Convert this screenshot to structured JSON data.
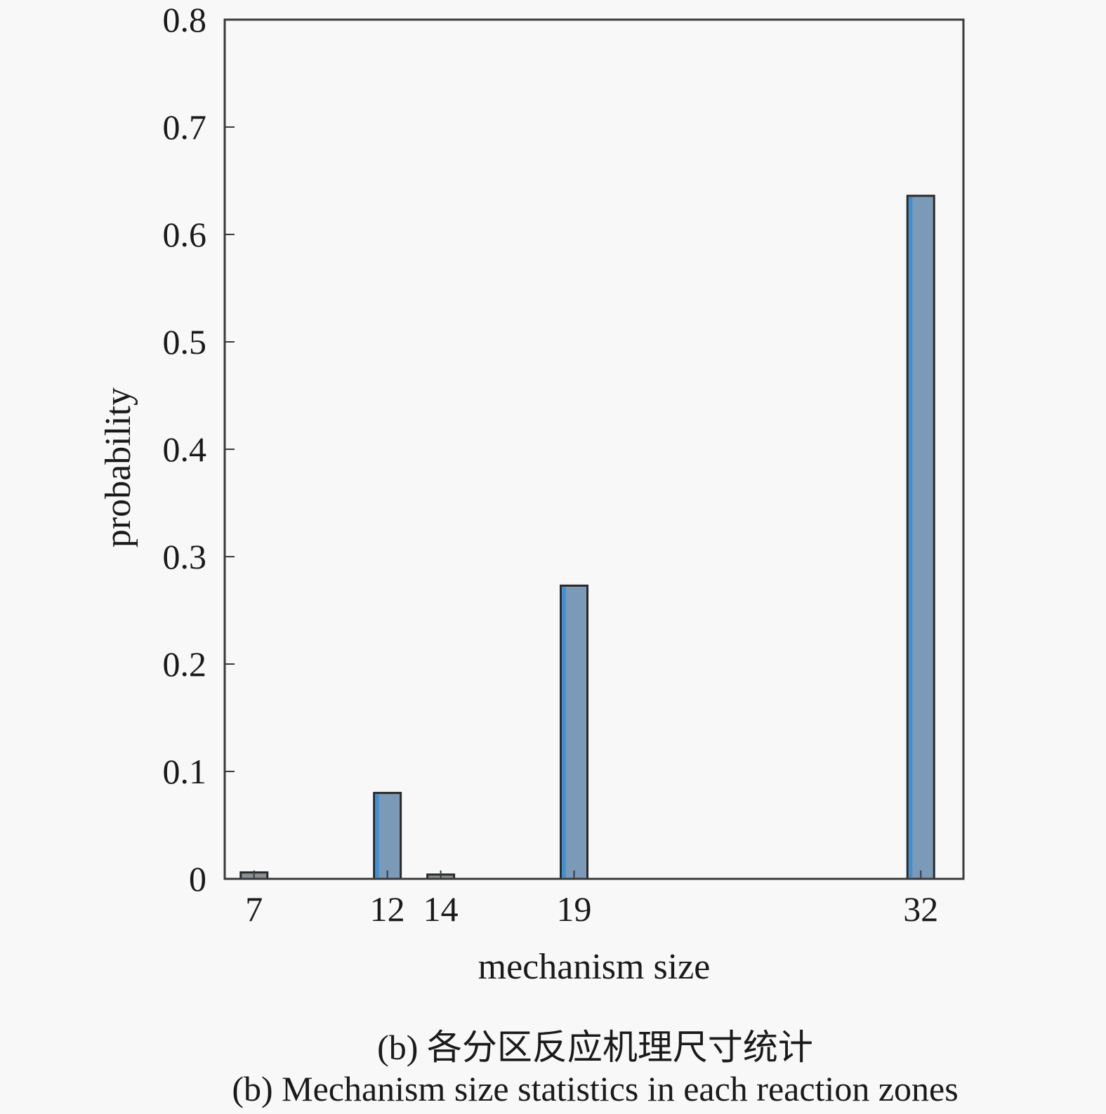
{
  "chart_data": {
    "type": "bar",
    "x": [
      7,
      12,
      14,
      19,
      32
    ],
    "x_tick_labels": [
      "7",
      "12",
      "14",
      "19",
      "32"
    ],
    "values": [
      0.006,
      0.08,
      0.004,
      0.273,
      0.636
    ],
    "xlabel": "mechanism size",
    "ylabel": "probability",
    "ylim": [
      0,
      0.8
    ],
    "yticks": [
      0,
      0.1,
      0.2,
      0.3,
      0.4,
      0.5,
      0.6,
      0.7,
      0.8
    ],
    "ytick_labels": [
      "0",
      "0.1",
      "0.2",
      "0.3",
      "0.4",
      "0.5",
      "0.6",
      "0.7",
      "0.8"
    ],
    "xlim": [
      5.9,
      33.6
    ],
    "grid": false,
    "bar_color": "#7a9ab8",
    "bar_edge_color": "#2a2a2a",
    "bar_highlight_color": "#3d8fd6"
  },
  "captions": {
    "cn": "(b) 各分区反应机理尺寸统计",
    "en": "(b) Mechanism size statistics in each reaction zones"
  }
}
